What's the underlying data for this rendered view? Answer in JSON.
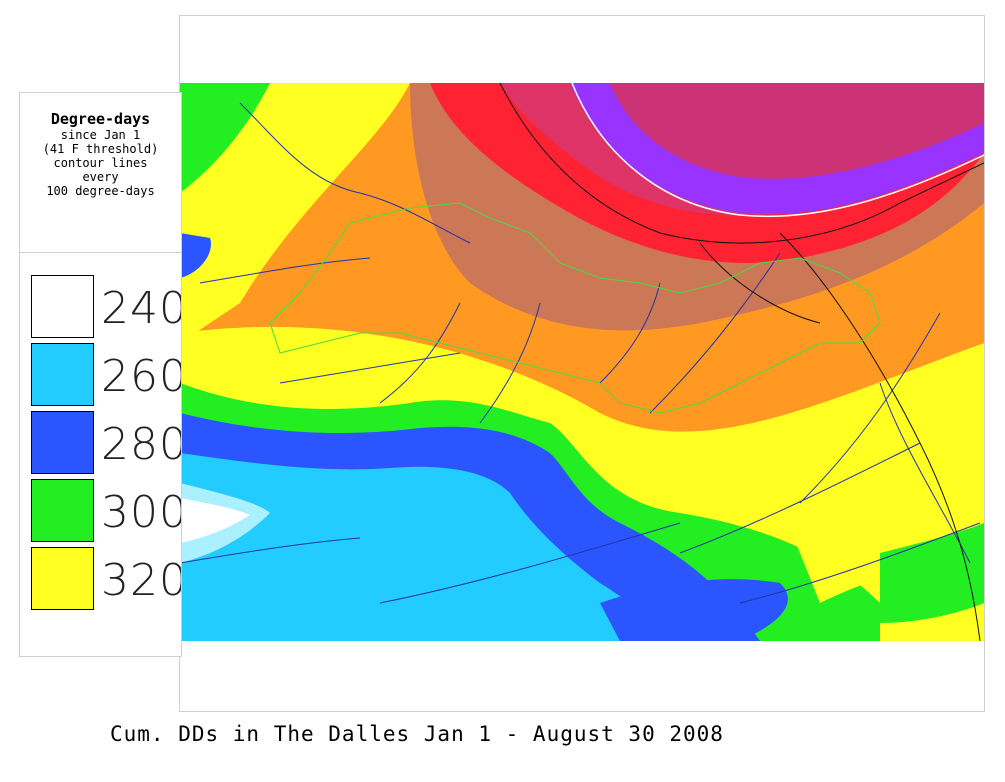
{
  "legend": {
    "title": "Degree-days",
    "lines": [
      "since Jan 1",
      "(41 F threshold)",
      "contour lines",
      "every",
      "100 degree-days"
    ],
    "items": [
      {
        "label": "240",
        "color": "#ffffff"
      },
      {
        "label": "260",
        "color": "#22ccff"
      },
      {
        "label": "280",
        "color": "#2b55ff"
      },
      {
        "label": "300",
        "color": "#22ee22"
      },
      {
        "label": "320",
        "color": "#ffff22"
      }
    ]
  },
  "map": {
    "colors": {
      "cold_peak": "#ffffff",
      "cyan": "#22ccff",
      "blue": "#2b55ff",
      "green": "#22ee22",
      "yellow": "#ffff22",
      "orange": "#ff9922",
      "tan": "#cc7755",
      "red": "#ff2233",
      "magenta": "#dd3366",
      "purple": "#9933ff",
      "contour_green": "#44dd44",
      "stream_blue": "#2233aa",
      "road_black": "#111111"
    }
  },
  "caption": "Cum. DDs in The Dalles Jan 1 - August 30 2008"
}
